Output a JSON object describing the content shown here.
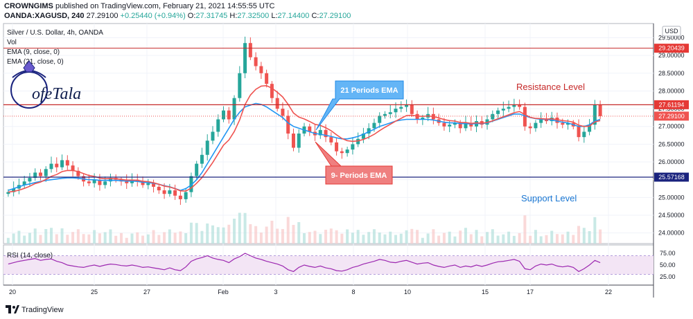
{
  "header": {
    "line1_user": "CROWNGIMS",
    "line1_rest": "published on TradingView.com, February 21, 2021 14:55:55 UTC",
    "line2_symbol": "OANDA:XAGUSD, 240",
    "line2_price": "27.29100",
    "line2_change": "+0.25440 (+0.94%)",
    "line2_o_label": "O:",
    "line2_o": "27.31745",
    "line2_h_label": "H:",
    "line2_h": "27.32500",
    "line2_l_label": "L:",
    "line2_l": "27.14400",
    "line2_c_label": "C:",
    "line2_c": "27.29100"
  },
  "legend": {
    "title": "Silver / U.S. Dollar, 4h, OANDA",
    "vol": "Vol",
    "ema9": "EMA (9, close, 0)",
    "ema21": "EMA (21, close, 0)",
    "rsi": "RSI (14, close)"
  },
  "axis": {
    "currency": "USD",
    "y_ticks": [
      "29.50000",
      "29.00000",
      "28.50000",
      "28.00000",
      "27.50000",
      "27.00000",
      "26.50000",
      "26.00000",
      "25.50000",
      "25.00000",
      "24.50000",
      "24.00000"
    ],
    "rsi_ticks": [
      "75.00",
      "50.00",
      "25.00"
    ],
    "x_ticks": [
      "20",
      "25",
      "27",
      "Feb",
      "3",
      "8",
      "10",
      "15",
      "17",
      "22"
    ]
  },
  "price_labels": {
    "resistance_top": "29.20439",
    "resistance": "27.61194",
    "current": "27.29100",
    "support": "25.57168"
  },
  "annotations": {
    "resistance_text": "Resistance Level",
    "support_text": "Support Level",
    "ema21_callout": "21 Periods EMA",
    "ema9_callout": "9- Periods EMA"
  },
  "logo": {
    "text": "ofeTala",
    "letter": "L"
  },
  "footer": {
    "brand": "TradingView"
  },
  "colors": {
    "up": "#26a69a",
    "down": "#ef5350",
    "ema9": "#ef5350",
    "ema21": "#2196f3",
    "resistance": "#c62828",
    "support": "#1a237e",
    "rsi": "#9c27b0",
    "rsi_band": "#f3e5f5"
  },
  "chart_data": {
    "type": "candlestick",
    "title": "Silver / U.S. Dollar, 4h, OANDA",
    "ylim": [
      23.7,
      29.9
    ],
    "x_labels": [
      "20",
      "25",
      "27",
      "Feb",
      "3",
      "8",
      "10",
      "15",
      "17",
      "22"
    ],
    "levels": {
      "resistance_top": 29.20439,
      "resistance": 27.61194,
      "current": 27.291,
      "support": 25.57168
    },
    "closes": [
      25.15,
      25.25,
      25.35,
      25.45,
      25.55,
      25.7,
      25.6,
      25.8,
      25.95,
      25.85,
      26.05,
      25.9,
      25.75,
      25.6,
      25.45,
      25.4,
      25.5,
      25.35,
      25.45,
      25.55,
      25.5,
      25.45,
      25.4,
      25.5,
      25.45,
      25.35,
      25.4,
      25.3,
      25.2,
      25.1,
      25.2,
      25.05,
      24.95,
      25.15,
      25.6,
      25.95,
      26.2,
      26.6,
      26.85,
      27.2,
      27.45,
      27.2,
      27.8,
      28.5,
      29.35,
      28.95,
      28.7,
      28.5,
      28.2,
      27.8,
      27.5,
      27.3,
      26.8,
      26.4,
      26.8,
      27.0,
      26.85,
      26.75,
      26.9,
      26.7,
      26.55,
      26.3,
      26.25,
      26.35,
      26.5,
      26.65,
      26.8,
      26.95,
      27.1,
      27.3,
      27.35,
      27.4,
      27.5,
      27.55,
      27.62,
      27.35,
      27.2,
      27.25,
      27.35,
      27.2,
      27.1,
      27.0,
      27.05,
      27.1,
      26.95,
      27.1,
      27.0,
      27.15,
      27.05,
      27.2,
      27.35,
      27.45,
      27.5,
      27.55,
      27.62,
      27.55,
      27.0,
      26.95,
      27.1,
      27.2,
      27.15,
      27.25,
      27.1,
      27.05,
      27.1,
      27.0,
      26.7,
      26.85,
      27.05,
      27.61,
      27.29
    ],
    "ema21_values": [
      25.2,
      25.25,
      25.3,
      25.35,
      25.38,
      25.42,
      25.45,
      25.48,
      25.5,
      25.52,
      25.54,
      25.55,
      25.55,
      25.54,
      25.52,
      25.5,
      25.5,
      25.48,
      25.48,
      25.48,
      25.48,
      25.47,
      25.46,
      25.46,
      25.45,
      25.43,
      25.42,
      25.4,
      25.37,
      25.33,
      25.3,
      25.25,
      25.2,
      25.25,
      25.35,
      25.5,
      25.7,
      25.95,
      26.2,
      26.45,
      26.7,
      26.95,
      27.2,
      27.4,
      27.55,
      27.6,
      27.65,
      27.62,
      27.55,
      27.45,
      27.35,
      27.25,
      27.1,
      27.0,
      26.95,
      26.9,
      26.85,
      26.8,
      26.78,
      26.75,
      26.72,
      26.68,
      26.65,
      26.65,
      26.68,
      26.72,
      26.78,
      26.85,
      26.92,
      27.0,
      27.05,
      27.1,
      27.15,
      27.18,
      27.2,
      27.2,
      27.2,
      27.2,
      27.2,
      27.18,
      27.15,
      27.12,
      27.1,
      27.1,
      27.08,
      27.08,
      27.07,
      27.08,
      27.08,
      27.1,
      27.15,
      27.2,
      27.25,
      27.3,
      27.35,
      27.35,
      27.3,
      27.25,
      27.22,
      27.2,
      27.2,
      27.18,
      27.15,
      27.12,
      27.1,
      27.05,
      27.0,
      27.0,
      27.05,
      27.15,
      27.2
    ],
    "rsi_values": [
      52,
      55,
      58,
      60,
      62,
      64,
      60,
      62,
      63,
      58,
      55,
      50,
      48,
      46,
      45,
      48,
      50,
      47,
      50,
      52,
      51,
      49,
      48,
      50,
      48,
      45,
      46,
      44,
      42,
      40,
      44,
      40,
      38,
      46,
      58,
      63,
      66,
      70,
      65,
      62,
      60,
      55,
      63,
      68,
      75,
      70,
      65,
      62,
      58,
      55,
      52,
      48,
      40,
      36,
      45,
      50,
      47,
      45,
      48,
      44,
      42,
      38,
      37,
      40,
      45,
      48,
      52,
      55,
      58,
      62,
      60,
      56,
      55,
      58,
      60,
      56,
      52,
      54,
      55,
      50,
      47,
      45,
      48,
      50,
      45,
      48,
      46,
      50,
      47,
      50,
      54,
      57,
      58,
      60,
      62,
      58,
      42,
      40,
      48,
      52,
      50,
      52,
      48,
      46,
      48,
      45,
      36,
      42,
      50,
      60,
      55
    ]
  }
}
